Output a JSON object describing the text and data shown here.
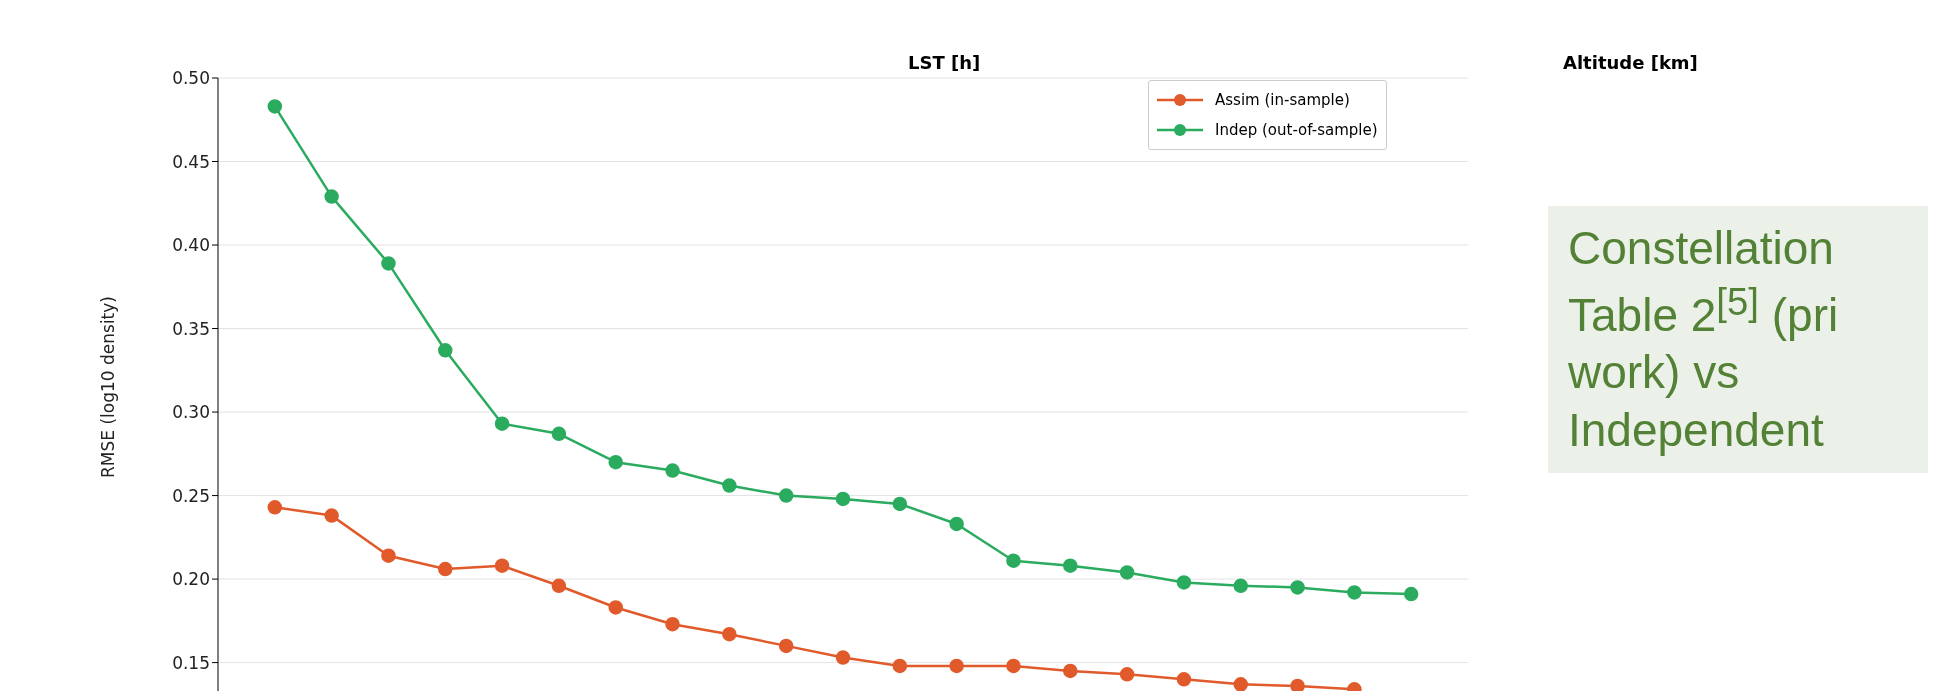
{
  "chart_data": {
    "type": "line",
    "ylabel": "RMSE (log10 density)",
    "categories": [
      null,
      null,
      null,
      null,
      null,
      null,
      null,
      null,
      null,
      null,
      null,
      null,
      null,
      null,
      null,
      null,
      null,
      null,
      null,
      null,
      null
    ],
    "series": [
      {
        "name": "Assim (in-sample)",
        "color": "#e05a2b",
        "values": [
          0.243,
          0.238,
          0.214,
          0.206,
          0.208,
          0.196,
          0.183,
          0.173,
          0.167,
          0.16,
          0.153,
          0.148,
          0.148,
          0.148,
          0.145,
          0.143,
          0.14,
          0.137,
          0.136,
          0.134,
          null
        ]
      },
      {
        "name": "Indep (out-of-sample)",
        "color": "#2aab5e",
        "values": [
          0.483,
          0.429,
          0.389,
          0.337,
          0.293,
          0.287,
          0.27,
          0.265,
          0.256,
          0.25,
          0.248,
          0.245,
          0.233,
          0.211,
          0.208,
          0.204,
          0.198,
          0.196,
          0.195,
          0.192,
          0.191
        ]
      }
    ],
    "ylim": [
      0.13,
      0.5
    ],
    "yticks": [
      {
        "value": 0.15,
        "label": "0.15"
      },
      {
        "value": 0.2,
        "label": "0.20"
      },
      {
        "value": 0.25,
        "label": "0.25"
      },
      {
        "value": 0.3,
        "label": "0.30"
      },
      {
        "value": 0.35,
        "label": "0.35"
      },
      {
        "value": 0.4,
        "label": "0.40"
      },
      {
        "value": 0.45,
        "label": "0.45"
      },
      {
        "value": 0.5,
        "label": "0.50"
      }
    ],
    "grid": "y",
    "legend": "top right",
    "marker": "circle",
    "line_style": "solid",
    "tick_labels": "y",
    "annotations": [
      "LST [h]",
      "Altitude [km]",
      "Constellation Table 2$^{[5]}$ (pri work) vs Independent"
    ]
  }
}
